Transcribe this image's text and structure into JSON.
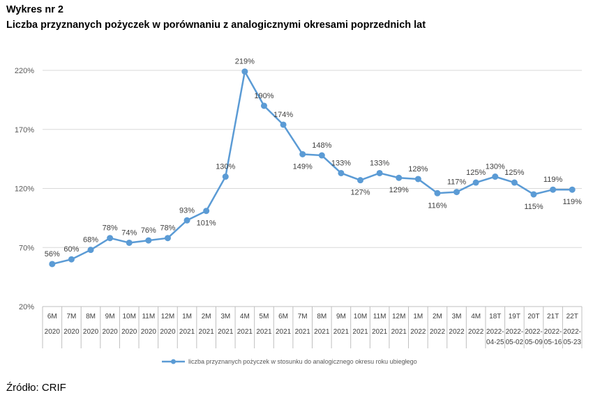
{
  "heading": "Wykres nr 2",
  "source": "Źródło: CRIF",
  "chart_data": {
    "type": "line",
    "title": "Liczba przyznanych pożyczek w porównaniu z analogicznymi okresami poprzednich lat",
    "xlabel": "",
    "ylabel": "",
    "ylim": [
      20,
      220
    ],
    "yticks": [
      20,
      70,
      120,
      170,
      220
    ],
    "ytick_labels": [
      "20%",
      "70%",
      "120%",
      "170%",
      "220%"
    ],
    "grid": "horizontal",
    "legend_position": "bottom",
    "categories": [
      [
        "6M",
        "2020"
      ],
      [
        "7M",
        "2020"
      ],
      [
        "8M",
        "2020"
      ],
      [
        "9M",
        "2020"
      ],
      [
        "10M",
        "2020"
      ],
      [
        "11M",
        "2020"
      ],
      [
        "12M",
        "2020"
      ],
      [
        "1M",
        "2021"
      ],
      [
        "2M",
        "2021"
      ],
      [
        "3M",
        "2021"
      ],
      [
        "4M",
        "2021"
      ],
      [
        "5M",
        "2021"
      ],
      [
        "6M",
        "2021"
      ],
      [
        "7M",
        "2021"
      ],
      [
        "8M",
        "2021"
      ],
      [
        "9M",
        "2021"
      ],
      [
        "10M",
        "2021"
      ],
      [
        "11M",
        "2021"
      ],
      [
        "12M",
        "2021"
      ],
      [
        "1M",
        "2022"
      ],
      [
        "2M",
        "2022"
      ],
      [
        "3M",
        "2022"
      ],
      [
        "4M",
        "2022"
      ],
      [
        "18T",
        "2022-",
        "04-25"
      ],
      [
        "19T",
        "2022-",
        "05-02"
      ],
      [
        "20T",
        "2022-",
        "05-09"
      ],
      [
        "21T",
        "2022-",
        "05-16"
      ],
      [
        "22T",
        "2022-",
        "05-23"
      ]
    ],
    "series": [
      {
        "name": "liczba przyznanych pożyczek w stosunku do analogicznego okresu roku ubiegłego",
        "color": "#5b9bd5",
        "values": [
          56,
          60,
          68,
          78,
          74,
          76,
          78,
          93,
          101,
          130,
          219,
          190,
          174,
          149,
          148,
          133,
          127,
          133,
          129,
          128,
          116,
          117,
          125,
          130,
          125,
          115,
          119,
          119
        ],
        "labels": [
          "56%",
          "60%",
          "68%",
          "78%",
          "74%",
          "76%",
          "78%",
          "93%",
          "101%",
          "130%",
          "219%",
          "190%",
          "174%",
          "149%",
          "148%",
          "133%",
          "127%",
          "133%",
          "129%",
          "128%",
          "116%",
          "117%",
          "125%",
          "130%",
          "125%",
          "115%",
          "119%",
          "119%"
        ],
        "label_positions": [
          "above",
          "above",
          "above",
          "above",
          "above",
          "above",
          "above",
          "above",
          "below",
          "above",
          "above",
          "above",
          "above",
          "below",
          "above",
          "above",
          "below",
          "above",
          "below",
          "above",
          "below",
          "above",
          "above",
          "above",
          "above",
          "below",
          "above",
          "below"
        ]
      }
    ]
  },
  "colors": {
    "grid": "#d9d9d9",
    "axis": "#bfbfbf",
    "series": "#5b9bd5"
  }
}
